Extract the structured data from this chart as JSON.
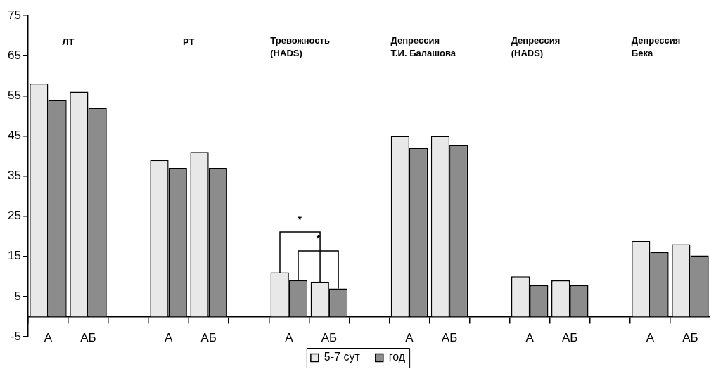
{
  "chart_data": {
    "type": "bar",
    "categories": [
      "А",
      "АБ",
      null,
      "А",
      "АБ",
      null,
      "А",
      "АБ",
      null,
      "А",
      "АБ",
      null,
      "А",
      "АБ",
      null,
      "А",
      "АБ"
    ],
    "series": [
      {
        "name": "5-7 сут",
        "color": "#e8e8e8",
        "values": [
          58,
          56,
          null,
          39,
          41,
          null,
          11,
          8.7,
          null,
          45,
          45,
          null,
          10,
          9,
          null,
          18.8,
          18
        ]
      },
      {
        "name": "год",
        "color": "#8c8c8c",
        "values": [
          54,
          52,
          null,
          37,
          37,
          null,
          9,
          7,
          null,
          42,
          42.7,
          null,
          7.8,
          7.8,
          null,
          16,
          15.2
        ]
      }
    ],
    "ylim": [
      -5,
      75
    ],
    "yticks": [
      -5,
      5,
      15,
      25,
      35,
      45,
      55,
      65,
      75
    ],
    "grid": false,
    "legend": "bottom",
    "annotations": [
      "ЛТ",
      "РТ",
      "Тревожность\n(HADS)",
      "Депрессия\nТ.И. Балашова",
      "Депрессия\n(HADS)",
      "Депрессия\nБека",
      "*",
      "*"
    ]
  }
}
